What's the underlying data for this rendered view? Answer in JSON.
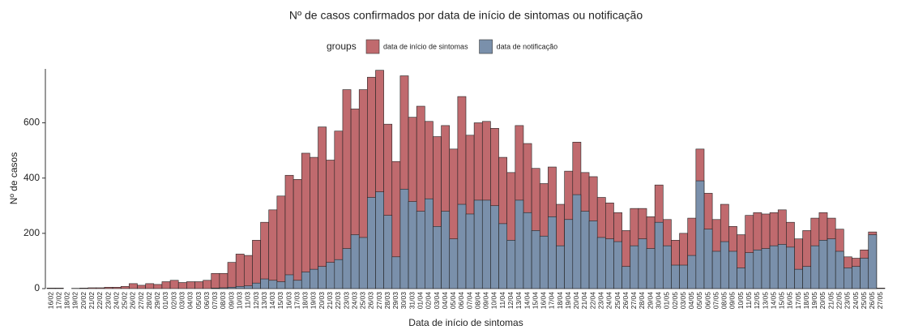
{
  "chart_data": {
    "type": "bar",
    "stacked": false,
    "title": "Nº de casos confirmados por data de início de sintomas ou notificação",
    "legend_title": "groups",
    "x_label": "Data de início de sintomas",
    "y_label": "Nº de casos",
    "categories": [
      "16/02",
      "17/02",
      "18/02",
      "19/02",
      "20/02",
      "21/02",
      "22/02",
      "23/02",
      "24/02",
      "25/02",
      "26/02",
      "27/02",
      "28/02",
      "29/02",
      "01/03",
      "02/03",
      "03/03",
      "04/03",
      "05/03",
      "06/03",
      "07/03",
      "08/03",
      "09/03",
      "10/03",
      "11/03",
      "12/03",
      "13/03",
      "14/03",
      "15/03",
      "16/03",
      "17/03",
      "18/03",
      "19/03",
      "20/03",
      "21/03",
      "22/03",
      "23/03",
      "24/03",
      "25/03",
      "26/03",
      "27/03",
      "28/03",
      "29/03",
      "30/03",
      "31/03",
      "01/04",
      "02/04",
      "03/04",
      "04/04",
      "05/04",
      "06/04",
      "07/04",
      "08/04",
      "09/04",
      "10/04",
      "11/04",
      "12/04",
      "13/04",
      "14/04",
      "15/04",
      "16/04",
      "17/04",
      "18/04",
      "19/04",
      "20/04",
      "21/04",
      "22/04",
      "23/04",
      "24/04",
      "25/04",
      "26/04",
      "27/04",
      "28/04",
      "29/04",
      "30/04",
      "01/05",
      "02/05",
      "03/05",
      "04/05",
      "05/05",
      "06/05",
      "07/05",
      "08/05",
      "09/05",
      "10/05",
      "11/05",
      "12/05",
      "13/05",
      "14/05",
      "15/05",
      "16/05",
      "17/05",
      "18/05",
      "19/05",
      "20/05",
      "21/05",
      "22/05",
      "23/05",
      "24/05",
      "25/05",
      "26/05",
      "27/05"
    ],
    "series": [
      {
        "name": "data de início de sintomas",
        "color": "#c06a6e",
        "values": [
          2,
          2,
          0,
          1,
          2,
          3,
          3,
          5,
          5,
          8,
          18,
          12,
          18,
          15,
          25,
          30,
          22,
          25,
          25,
          30,
          55,
          55,
          95,
          125,
          120,
          175,
          240,
          285,
          335,
          410,
          395,
          490,
          475,
          585,
          465,
          570,
          720,
          650,
          720,
          765,
          790,
          595,
          460,
          770,
          620,
          660,
          605,
          550,
          590,
          505,
          695,
          555,
          600,
          605,
          580,
          475,
          420,
          590,
          525,
          435,
          380,
          440,
          305,
          425,
          530,
          420,
          405,
          330,
          310,
          275,
          210,
          290,
          290,
          260,
          375,
          250,
          175,
          200,
          255,
          505,
          345,
          250,
          305,
          225,
          195,
          265,
          275,
          270,
          275,
          285,
          240,
          180,
          210,
          255,
          275,
          255,
          215,
          115,
          110,
          140,
          205,
          2
        ]
      },
      {
        "name": "data de notificação",
        "color": "#7a90ab",
        "values": [
          0,
          0,
          0,
          0,
          0,
          0,
          0,
          0,
          0,
          0,
          0,
          0,
          0,
          0,
          0,
          0,
          0,
          0,
          0,
          0,
          2,
          3,
          5,
          8,
          10,
          20,
          35,
          30,
          25,
          50,
          30,
          60,
          70,
          80,
          95,
          105,
          145,
          195,
          185,
          330,
          350,
          265,
          115,
          360,
          315,
          280,
          325,
          225,
          280,
          180,
          305,
          270,
          320,
          320,
          300,
          235,
          175,
          320,
          275,
          210,
          190,
          260,
          155,
          250,
          340,
          280,
          245,
          185,
          180,
          170,
          80,
          155,
          180,
          145,
          240,
          155,
          85,
          85,
          120,
          390,
          215,
          135,
          170,
          135,
          75,
          130,
          140,
          145,
          155,
          160,
          150,
          70,
          80,
          155,
          175,
          180,
          135,
          75,
          80,
          110,
          195,
          0
        ]
      }
    ],
    "ylim": [
      0,
      795
    ],
    "yticks": [
      0,
      200,
      400,
      600
    ],
    "grid": false
  }
}
